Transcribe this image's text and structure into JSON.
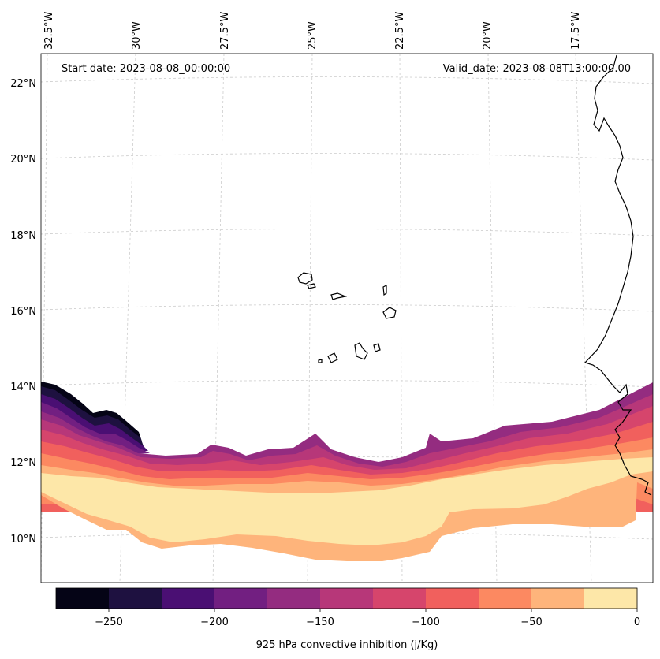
{
  "map": {
    "start_date_text": "Start date: 2023-08-08_00:00:00",
    "valid_date_text": "Valid_date: 2023-08-08T13:00:00.00",
    "lon_labels": [
      "32.5°W",
      "30°W",
      "27.5°W",
      "25°W",
      "22.5°W",
      "20°W",
      "17.5°W"
    ],
    "lat_labels": [
      "22°N",
      "20°N",
      "18°N",
      "16°N",
      "14°N",
      "12°N",
      "10°N"
    ],
    "variable": "925 hPa convective inhibition",
    "units": "j/Kg"
  },
  "colorbar": {
    "label": "925 hPa convective inhibition (j/Kg)",
    "tick_labels": [
      "−250",
      "−200",
      "−150",
      "−100",
      "−50",
      "0"
    ],
    "levels": [
      -275,
      -250,
      -225,
      -200,
      -175,
      -150,
      -125,
      -100,
      -75,
      -50,
      -25,
      0
    ],
    "colors": [
      "#050416",
      "#1e1140",
      "#4a0f73",
      "#721f81",
      "#942c80",
      "#b73779",
      "#d6456c",
      "#f1605d",
      "#fc8961",
      "#feb47b",
      "#fde7a8"
    ]
  }
}
